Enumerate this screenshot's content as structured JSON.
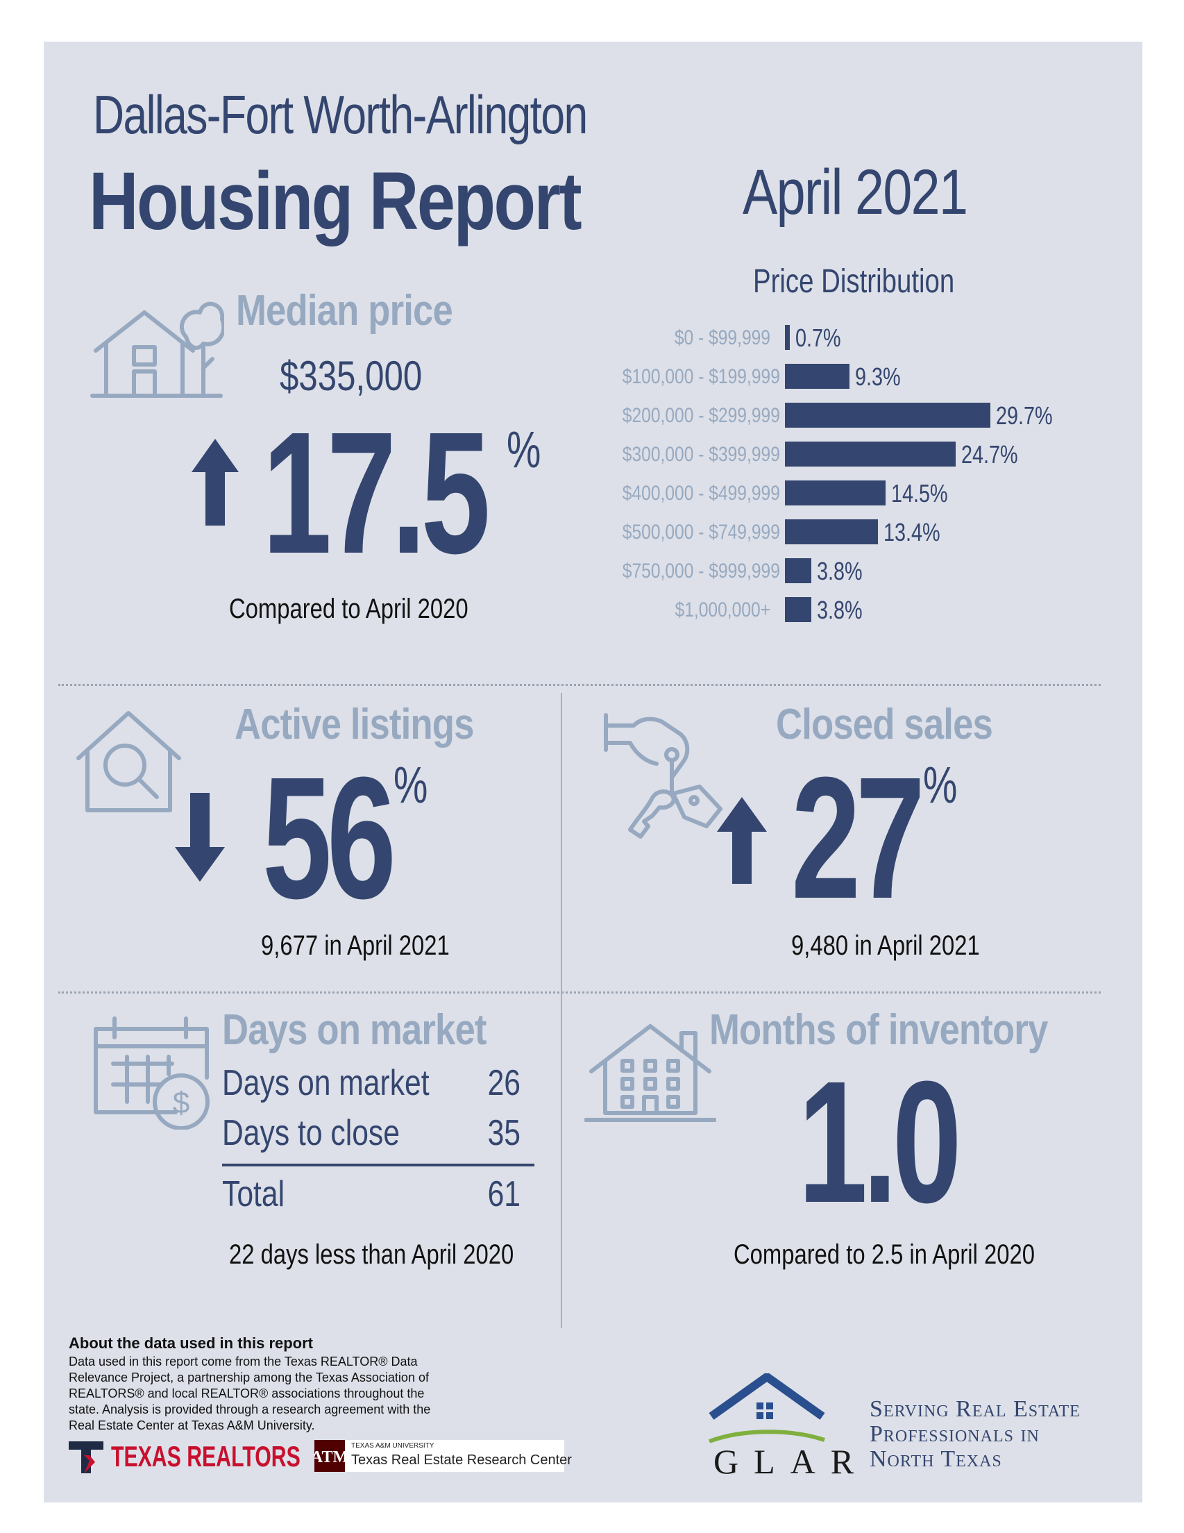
{
  "header": {
    "region": "Dallas-Fort Worth-Arlington",
    "title": "Housing Report",
    "period": "April 2021"
  },
  "median_price": {
    "heading": "Median price",
    "value": "$335,000",
    "change": "17.5",
    "unit": "%",
    "direction": "up",
    "note": "Compared to April 2020"
  },
  "price_distribution": {
    "heading": "Price Distribution",
    "rows": [
      {
        "label": "$0 - $99,999",
        "value_text": "0.7%",
        "value": 0.7
      },
      {
        "label": "$100,000 - $199,999",
        "value_text": "9.3%",
        "value": 9.3
      },
      {
        "label": "$200,000 - $299,999",
        "value_text": "29.7%",
        "value": 29.7
      },
      {
        "label": "$300,000 - $399,999",
        "value_text": "24.7%",
        "value": 24.7
      },
      {
        "label": "$400,000 - $499,999",
        "value_text": "14.5%",
        "value": 14.5
      },
      {
        "label": "$500,000 - $749,999",
        "value_text": "13.4%",
        "value": 13.4
      },
      {
        "label": "$750,000 - $999,999",
        "value_text": "3.8%",
        "value": 3.8
      },
      {
        "label": "$1,000,000+",
        "value_text": "3.8%",
        "value": 3.8
      }
    ]
  },
  "active_listings": {
    "heading": "Active listings",
    "change": "56",
    "unit": "%",
    "direction": "down",
    "note": "9,677 in April 2021"
  },
  "closed_sales": {
    "heading": "Closed sales",
    "change": "27",
    "unit": "%",
    "direction": "up",
    "note": "9,480 in April 2021"
  },
  "days_on_market": {
    "heading": "Days on market",
    "rows": [
      {
        "label": "Days on market",
        "value": "26"
      },
      {
        "label": "Days to close",
        "value": "35"
      }
    ],
    "total_label": "Total",
    "total_value": "61",
    "note": "22 days less than April 2020"
  },
  "months_inventory": {
    "heading": "Months of inventory",
    "value": "1.0",
    "note": "Compared to 2.5 in April 2020"
  },
  "about": {
    "title": "About the data used in this report",
    "body": "Data used in this report come from the Texas REALTOR® Data Relevance Project, a partnership among the Texas Association of REALTORS® and local REALTOR® associations throughout the state. Analysis is provided through a research agreement with the Real Estate Center at Texas A&M University."
  },
  "logos": {
    "texas_realtors": "TEXAS REALTORS",
    "tamu_small": "TEXAS A&M UNIVERSITY",
    "tamu_center": "Texas Real Estate Research Center",
    "glar": "GLAR",
    "glar_tagline": [
      "Serving Real Estate",
      "Professionals in",
      "North Texas"
    ]
  },
  "colors": {
    "navy": "#34466f",
    "light": "#97a9c0",
    "panel": "#dde0e8",
    "realtor_red": "#c8102e",
    "tamu_maroon": "#500000",
    "glar_green": "#7fb03f"
  }
}
